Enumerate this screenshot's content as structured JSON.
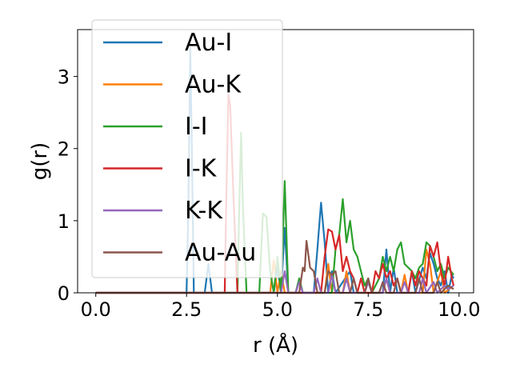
{
  "chart_data": {
    "type": "line",
    "title": "",
    "xlabel": "r (Å)",
    "ylabel": "g(r)",
    "xlim": [
      -0.5,
      10.4
    ],
    "ylim": [
      0,
      3.65
    ],
    "xticks": [
      {
        "value": 0.0,
        "label": "0.0"
      },
      {
        "value": 2.5,
        "label": "2.5"
      },
      {
        "value": 5.0,
        "label": "5.0"
      },
      {
        "value": 7.5,
        "label": "7.5"
      },
      {
        "value": 10.0,
        "label": "10.0"
      }
    ],
    "yticks": [
      {
        "value": 0,
        "label": "0"
      },
      {
        "value": 1,
        "label": "1"
      },
      {
        "value": 2,
        "label": "2"
      },
      {
        "value": 3,
        "label": "3"
      }
    ],
    "grid": false,
    "legend_position": "top-left",
    "series": [
      {
        "name": "Au-I",
        "color": "#1f77b4",
        "points": [
          [
            0,
            0
          ],
          [
            2.5,
            0
          ],
          [
            2.55,
            1.2
          ],
          [
            2.6,
            3.4
          ],
          [
            2.65,
            1.8
          ],
          [
            2.7,
            0
          ],
          [
            3.0,
            0
          ],
          [
            3.1,
            0.4
          ],
          [
            3.2,
            0
          ],
          [
            4.9,
            0
          ],
          [
            5.0,
            0.35
          ],
          [
            5.1,
            0
          ],
          [
            5.2,
            0.9
          ],
          [
            5.3,
            0
          ],
          [
            6.0,
            0
          ],
          [
            6.1,
            0.6
          ],
          [
            6.2,
            1.25
          ],
          [
            6.3,
            0.7
          ],
          [
            6.4,
            0
          ],
          [
            6.5,
            0.3
          ],
          [
            6.6,
            0
          ],
          [
            7.0,
            0.3
          ],
          [
            7.1,
            0
          ],
          [
            7.9,
            0
          ],
          [
            8.0,
            0.6
          ],
          [
            8.1,
            0
          ],
          [
            8.2,
            0.35
          ],
          [
            8.3,
            0
          ],
          [
            8.6,
            0
          ],
          [
            8.7,
            0.3
          ],
          [
            8.8,
            0
          ],
          [
            9.0,
            0.35
          ],
          [
            9.1,
            0.2
          ],
          [
            9.2,
            0.55
          ],
          [
            9.3,
            0.4
          ],
          [
            9.4,
            0.2
          ],
          [
            9.5,
            0.1
          ],
          [
            9.6,
            0.3
          ],
          [
            9.7,
            0
          ],
          [
            9.8,
            0.25
          ],
          [
            9.85,
            0.2
          ]
        ]
      },
      {
        "name": "Au-K",
        "color": "#ff7f0e",
        "points": [
          [
            0,
            0
          ],
          [
            4.8,
            0
          ],
          [
            4.9,
            0.45
          ],
          [
            5.0,
            0
          ],
          [
            5.1,
            0.3
          ],
          [
            5.2,
            0
          ],
          [
            6.3,
            0
          ],
          [
            6.4,
            0.4
          ],
          [
            6.5,
            0
          ],
          [
            6.8,
            0
          ],
          [
            6.9,
            0.3
          ],
          [
            7.0,
            0
          ],
          [
            7.9,
            0
          ],
          [
            8.0,
            0.2
          ],
          [
            8.1,
            0
          ],
          [
            8.4,
            0
          ],
          [
            8.5,
            0.25
          ],
          [
            8.6,
            0
          ],
          [
            9.0,
            0
          ],
          [
            9.1,
            0.6
          ],
          [
            9.2,
            0.4
          ],
          [
            9.3,
            0
          ],
          [
            9.5,
            0.3
          ],
          [
            9.6,
            0
          ],
          [
            9.85,
            0.1
          ]
        ]
      },
      {
        "name": "I-I",
        "color": "#2ca02c",
        "points": [
          [
            0,
            0
          ],
          [
            3.9,
            0
          ],
          [
            3.95,
            1.2
          ],
          [
            4.0,
            2.22
          ],
          [
            4.05,
            1.2
          ],
          [
            4.15,
            0
          ],
          [
            4.5,
            0
          ],
          [
            4.6,
            1.1
          ],
          [
            4.7,
            1.05
          ],
          [
            4.8,
            0.3
          ],
          [
            4.9,
            0
          ],
          [
            5.0,
            0.5
          ],
          [
            5.1,
            0
          ],
          [
            5.2,
            1.55
          ],
          [
            5.3,
            0
          ],
          [
            5.5,
            0
          ],
          [
            5.6,
            0.2
          ],
          [
            5.7,
            0
          ],
          [
            6.5,
            0
          ],
          [
            6.6,
            0.6
          ],
          [
            6.7,
            0.8
          ],
          [
            6.8,
            1.3
          ],
          [
            6.9,
            0.7
          ],
          [
            7.0,
            1.0
          ],
          [
            7.1,
            0.6
          ],
          [
            7.2,
            0.5
          ],
          [
            7.3,
            0.3
          ],
          [
            7.4,
            0.1
          ],
          [
            7.5,
            0.2
          ],
          [
            7.6,
            0
          ],
          [
            7.8,
            0.2
          ],
          [
            7.9,
            0.5
          ],
          [
            8.0,
            0.3
          ],
          [
            8.1,
            0.5
          ],
          [
            8.2,
            0.3
          ],
          [
            8.3,
            0.6
          ],
          [
            8.4,
            0.7
          ],
          [
            8.5,
            0.4
          ],
          [
            8.6,
            0.35
          ],
          [
            8.7,
            0.3
          ],
          [
            8.8,
            0.2
          ],
          [
            8.9,
            0.35
          ],
          [
            9.0,
            0.4
          ],
          [
            9.1,
            0.7
          ],
          [
            9.2,
            0.65
          ],
          [
            9.3,
            0.5
          ],
          [
            9.4,
            0.3
          ],
          [
            9.5,
            0.4
          ],
          [
            9.6,
            0.2
          ],
          [
            9.7,
            0.35
          ],
          [
            9.85,
            0.25
          ]
        ]
      },
      {
        "name": "I-K",
        "color": "#d62728",
        "points": [
          [
            0,
            0
          ],
          [
            3.55,
            0
          ],
          [
            3.6,
            1.5
          ],
          [
            3.65,
            2.75
          ],
          [
            3.7,
            2.6
          ],
          [
            3.8,
            1.2
          ],
          [
            3.9,
            0
          ],
          [
            6.2,
            0
          ],
          [
            6.3,
            0.5
          ],
          [
            6.4,
            0.88
          ],
          [
            6.5,
            0.85
          ],
          [
            6.6,
            0.6
          ],
          [
            6.7,
            0.8
          ],
          [
            6.8,
            0.3
          ],
          [
            6.9,
            0.5
          ],
          [
            7.0,
            0.3
          ],
          [
            7.1,
            0.2
          ],
          [
            7.2,
            0
          ],
          [
            7.3,
            0.2
          ],
          [
            7.4,
            0
          ],
          [
            7.6,
            0
          ],
          [
            7.7,
            0.3
          ],
          [
            7.8,
            0.2
          ],
          [
            7.9,
            0.4
          ],
          [
            8.0,
            0.2
          ],
          [
            8.1,
            0.3
          ],
          [
            8.2,
            0.1
          ],
          [
            8.3,
            0.2
          ],
          [
            8.4,
            0
          ],
          [
            8.6,
            0
          ],
          [
            8.7,
            0.3
          ],
          [
            8.8,
            0.1
          ],
          [
            8.9,
            0.3
          ],
          [
            9.0,
            0.2
          ],
          [
            9.1,
            0.1
          ],
          [
            9.2,
            0.65
          ],
          [
            9.3,
            0.5
          ],
          [
            9.4,
            0.7
          ],
          [
            9.5,
            0.3
          ],
          [
            9.6,
            0.1
          ],
          [
            9.7,
            0.5
          ],
          [
            9.8,
            0.2
          ],
          [
            9.85,
            0.1
          ]
        ]
      },
      {
        "name": "K-K",
        "color": "#9467bd",
        "points": [
          [
            0,
            0
          ],
          [
            5.1,
            0
          ],
          [
            5.2,
            0.3
          ],
          [
            5.3,
            0
          ],
          [
            5.5,
            0
          ],
          [
            5.6,
            0.15
          ],
          [
            5.7,
            0
          ],
          [
            6.0,
            0
          ],
          [
            6.1,
            0.2
          ],
          [
            6.2,
            0
          ],
          [
            6.4,
            0
          ],
          [
            6.5,
            0.25
          ],
          [
            6.6,
            0
          ],
          [
            6.8,
            0
          ],
          [
            6.9,
            0.2
          ],
          [
            7.0,
            0
          ],
          [
            7.4,
            0
          ],
          [
            7.5,
            0.15
          ],
          [
            7.6,
            0
          ],
          [
            7.9,
            0
          ],
          [
            8.0,
            0.2
          ],
          [
            8.1,
            0
          ],
          [
            8.4,
            0
          ],
          [
            8.5,
            0.15
          ],
          [
            8.6,
            0
          ],
          [
            8.9,
            0
          ],
          [
            9.0,
            0.2
          ],
          [
            9.1,
            0
          ],
          [
            9.3,
            0.15
          ],
          [
            9.4,
            0
          ],
          [
            9.6,
            0.1
          ],
          [
            9.7,
            0.05
          ],
          [
            9.85,
            0.1
          ]
        ]
      },
      {
        "name": "Au-Au",
        "color": "#8c564b",
        "points": [
          [
            0,
            0
          ],
          [
            5.6,
            0
          ],
          [
            5.7,
            0.35
          ],
          [
            5.75,
            0.3
          ],
          [
            5.8,
            0.72
          ],
          [
            5.9,
            0.35
          ],
          [
            6.0,
            0.3
          ],
          [
            6.1,
            0
          ],
          [
            6.3,
            0
          ],
          [
            6.4,
            0.3
          ],
          [
            6.5,
            0.25
          ],
          [
            6.6,
            0.3
          ],
          [
            6.7,
            0
          ],
          [
            7.0,
            0
          ],
          [
            7.1,
            0.2
          ],
          [
            7.2,
            0
          ],
          [
            7.4,
            0
          ],
          [
            7.5,
            0.2
          ],
          [
            7.6,
            0
          ],
          [
            7.8,
            0
          ],
          [
            7.9,
            0.15
          ],
          [
            8.0,
            0
          ],
          [
            8.2,
            0
          ],
          [
            8.3,
            0.2
          ],
          [
            8.4,
            0
          ],
          [
            8.8,
            0
          ],
          [
            8.9,
            0.2
          ],
          [
            9.0,
            0
          ],
          [
            9.3,
            0
          ],
          [
            9.4,
            0.15
          ],
          [
            9.5,
            0
          ],
          [
            9.7,
            0.1
          ],
          [
            9.85,
            0.05
          ]
        ]
      }
    ]
  }
}
